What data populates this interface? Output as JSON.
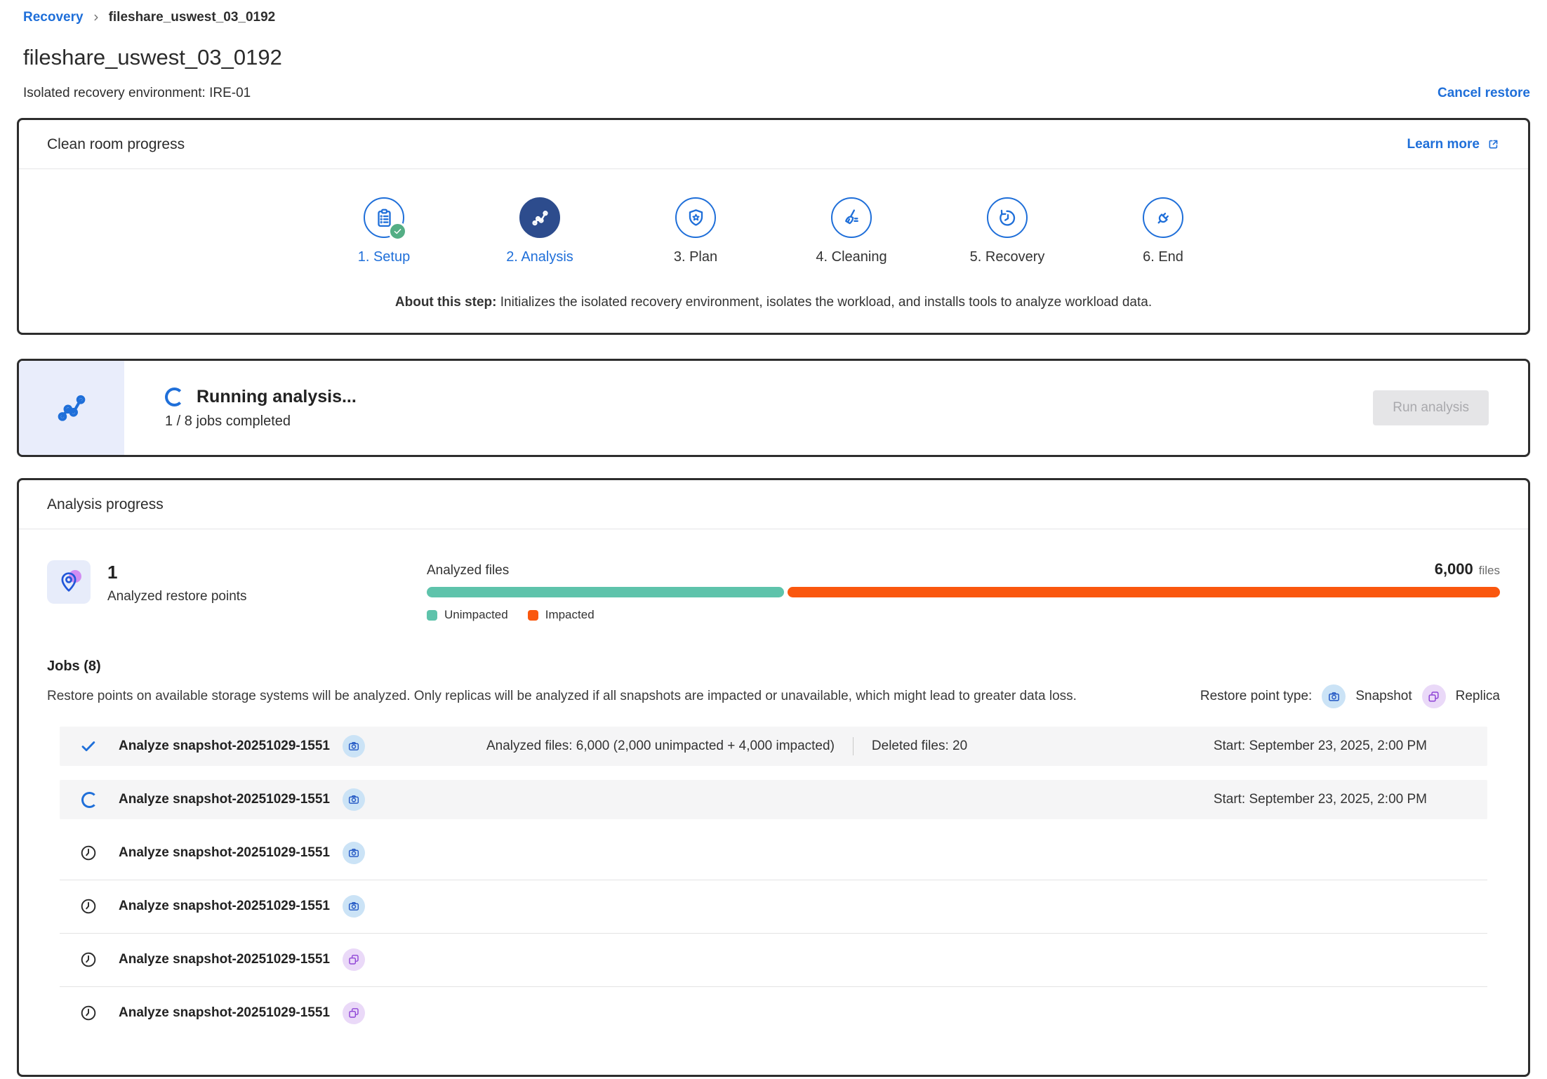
{
  "breadcrumb": {
    "root_label": "Recovery",
    "current_label": "fileshare_uswest_03_0192"
  },
  "header": {
    "title": "fileshare_uswest_03_0192",
    "subtitle": "Isolated recovery environment: IRE-01",
    "cancel_label": "Cancel restore"
  },
  "clean_room": {
    "title": "Clean room progress",
    "learn_more_label": "Learn more",
    "steps": [
      {
        "label": "1. Setup",
        "icon": "clipboard-icon",
        "state": "completed"
      },
      {
        "label": "2. Analysis",
        "icon": "chart-icon",
        "state": "active"
      },
      {
        "label": "3. Plan",
        "icon": "shield-star-icon",
        "state": "upcoming"
      },
      {
        "label": "4. Cleaning",
        "icon": "broom-icon",
        "state": "upcoming"
      },
      {
        "label": "5. Recovery",
        "icon": "history-icon",
        "state": "upcoming"
      },
      {
        "label": "6. End",
        "icon": "plug-icon",
        "state": "upcoming"
      }
    ],
    "about_label": "About this step:",
    "about_text": " Initializes the isolated recovery environment, isolates the workload, and installs tools to analyze workload data."
  },
  "status_banner": {
    "title": "Running analysis...",
    "subtitle": "1 / 8 jobs completed",
    "button_label": "Run analysis"
  },
  "analysis": {
    "title": "Analysis progress",
    "restore_points": {
      "count": "1",
      "label": "Analyzed restore points"
    },
    "files": {
      "label": "Analyzed files",
      "total_label": "6,000",
      "unit": "files",
      "unimpacted_count": 2000,
      "impacted_count": 4000,
      "unimpacted_label": "Unimpacted",
      "impacted_label": "Impacted"
    },
    "jobs": {
      "title": "Jobs (8)",
      "description": "Restore points on available storage systems will be analyzed. Only replicas will be analyzed if all snapshots are impacted or unavailable, which might lead to greater data loss.",
      "type_legend_label": "Restore point type:",
      "snapshot_label": "Snapshot",
      "replica_label": "Replica",
      "rows": [
        {
          "name": "Analyze snapshot-20251029-1551",
          "type": "snapshot",
          "status": "done",
          "files_stats": "Analyzed files: 6,000  (2,000 unimpacted + 4,000 impacted)",
          "deleted_stats": "Deleted files: 20",
          "start": "Start: September 23, 2025, 2:00 PM"
        },
        {
          "name": "Analyze snapshot-20251029-1551",
          "type": "snapshot",
          "status": "running",
          "start": "Start: September 23, 2025, 2:00 PM"
        },
        {
          "name": "Analyze snapshot-20251029-1551",
          "type": "snapshot",
          "status": "pending"
        },
        {
          "name": "Analyze snapshot-20251029-1551",
          "type": "snapshot",
          "status": "pending"
        },
        {
          "name": "Analyze snapshot-20251029-1551",
          "type": "replica",
          "status": "pending"
        },
        {
          "name": "Analyze snapshot-20251029-1551",
          "type": "replica",
          "status": "pending"
        }
      ]
    }
  },
  "colors": {
    "accent_blue": "#1f6fd9",
    "step_navy": "#2d4c8d",
    "success_green": "#54ae85",
    "unimpacted_teal": "#5ec3ab",
    "impacted_orange": "#fa570e",
    "snapshot_badge": "#cbe3f6",
    "replica_badge": "#ead9f8",
    "card_border": "#2d2d2d"
  }
}
